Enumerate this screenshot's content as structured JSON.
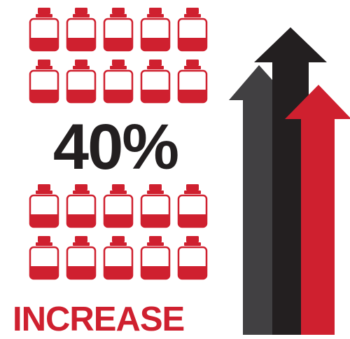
{
  "headline": {
    "percent_text": "40%",
    "word": "INCREASE"
  },
  "icon": "medicine-bottle-icon",
  "bottle_fill_fraction": 0.4,
  "colors": {
    "red": "#cf202f",
    "dark": "#231f20",
    "gray": "#414042",
    "outline": "#cf202f",
    "text_red": "#cf202f"
  },
  "arrows": [
    "gray-arrow",
    "black-arrow",
    "red-arrow"
  ]
}
